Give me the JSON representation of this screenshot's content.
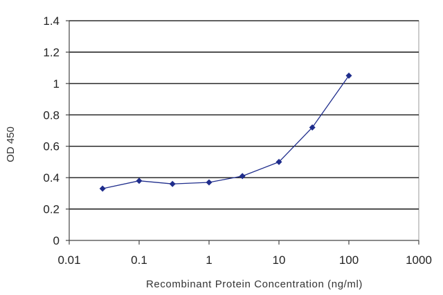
{
  "chart_data": {
    "type": "line",
    "title": "",
    "xlabel": "Recombinant Protein Concentration (ng/ml)",
    "ylabel": "OD 450",
    "x_scale": "log",
    "xlim": [
      0.01,
      1000
    ],
    "ylim": [
      0,
      1.4
    ],
    "x_ticks": [
      "0.01",
      "0.1",
      "1",
      "10",
      "100",
      "1000"
    ],
    "y_ticks": [
      "0",
      "0.2",
      "0.4",
      "0.6",
      "0.8",
      "1",
      "1.2",
      "1.4"
    ],
    "grid": "horizontal",
    "legend": "none",
    "series": [
      {
        "color": "#1f2d8c",
        "x": [
          0.03,
          0.1,
          0.3,
          1,
          3,
          10,
          30,
          100
        ],
        "y": [
          0.33,
          0.38,
          0.36,
          0.37,
          0.41,
          0.5,
          0.72,
          1.05
        ]
      }
    ]
  }
}
